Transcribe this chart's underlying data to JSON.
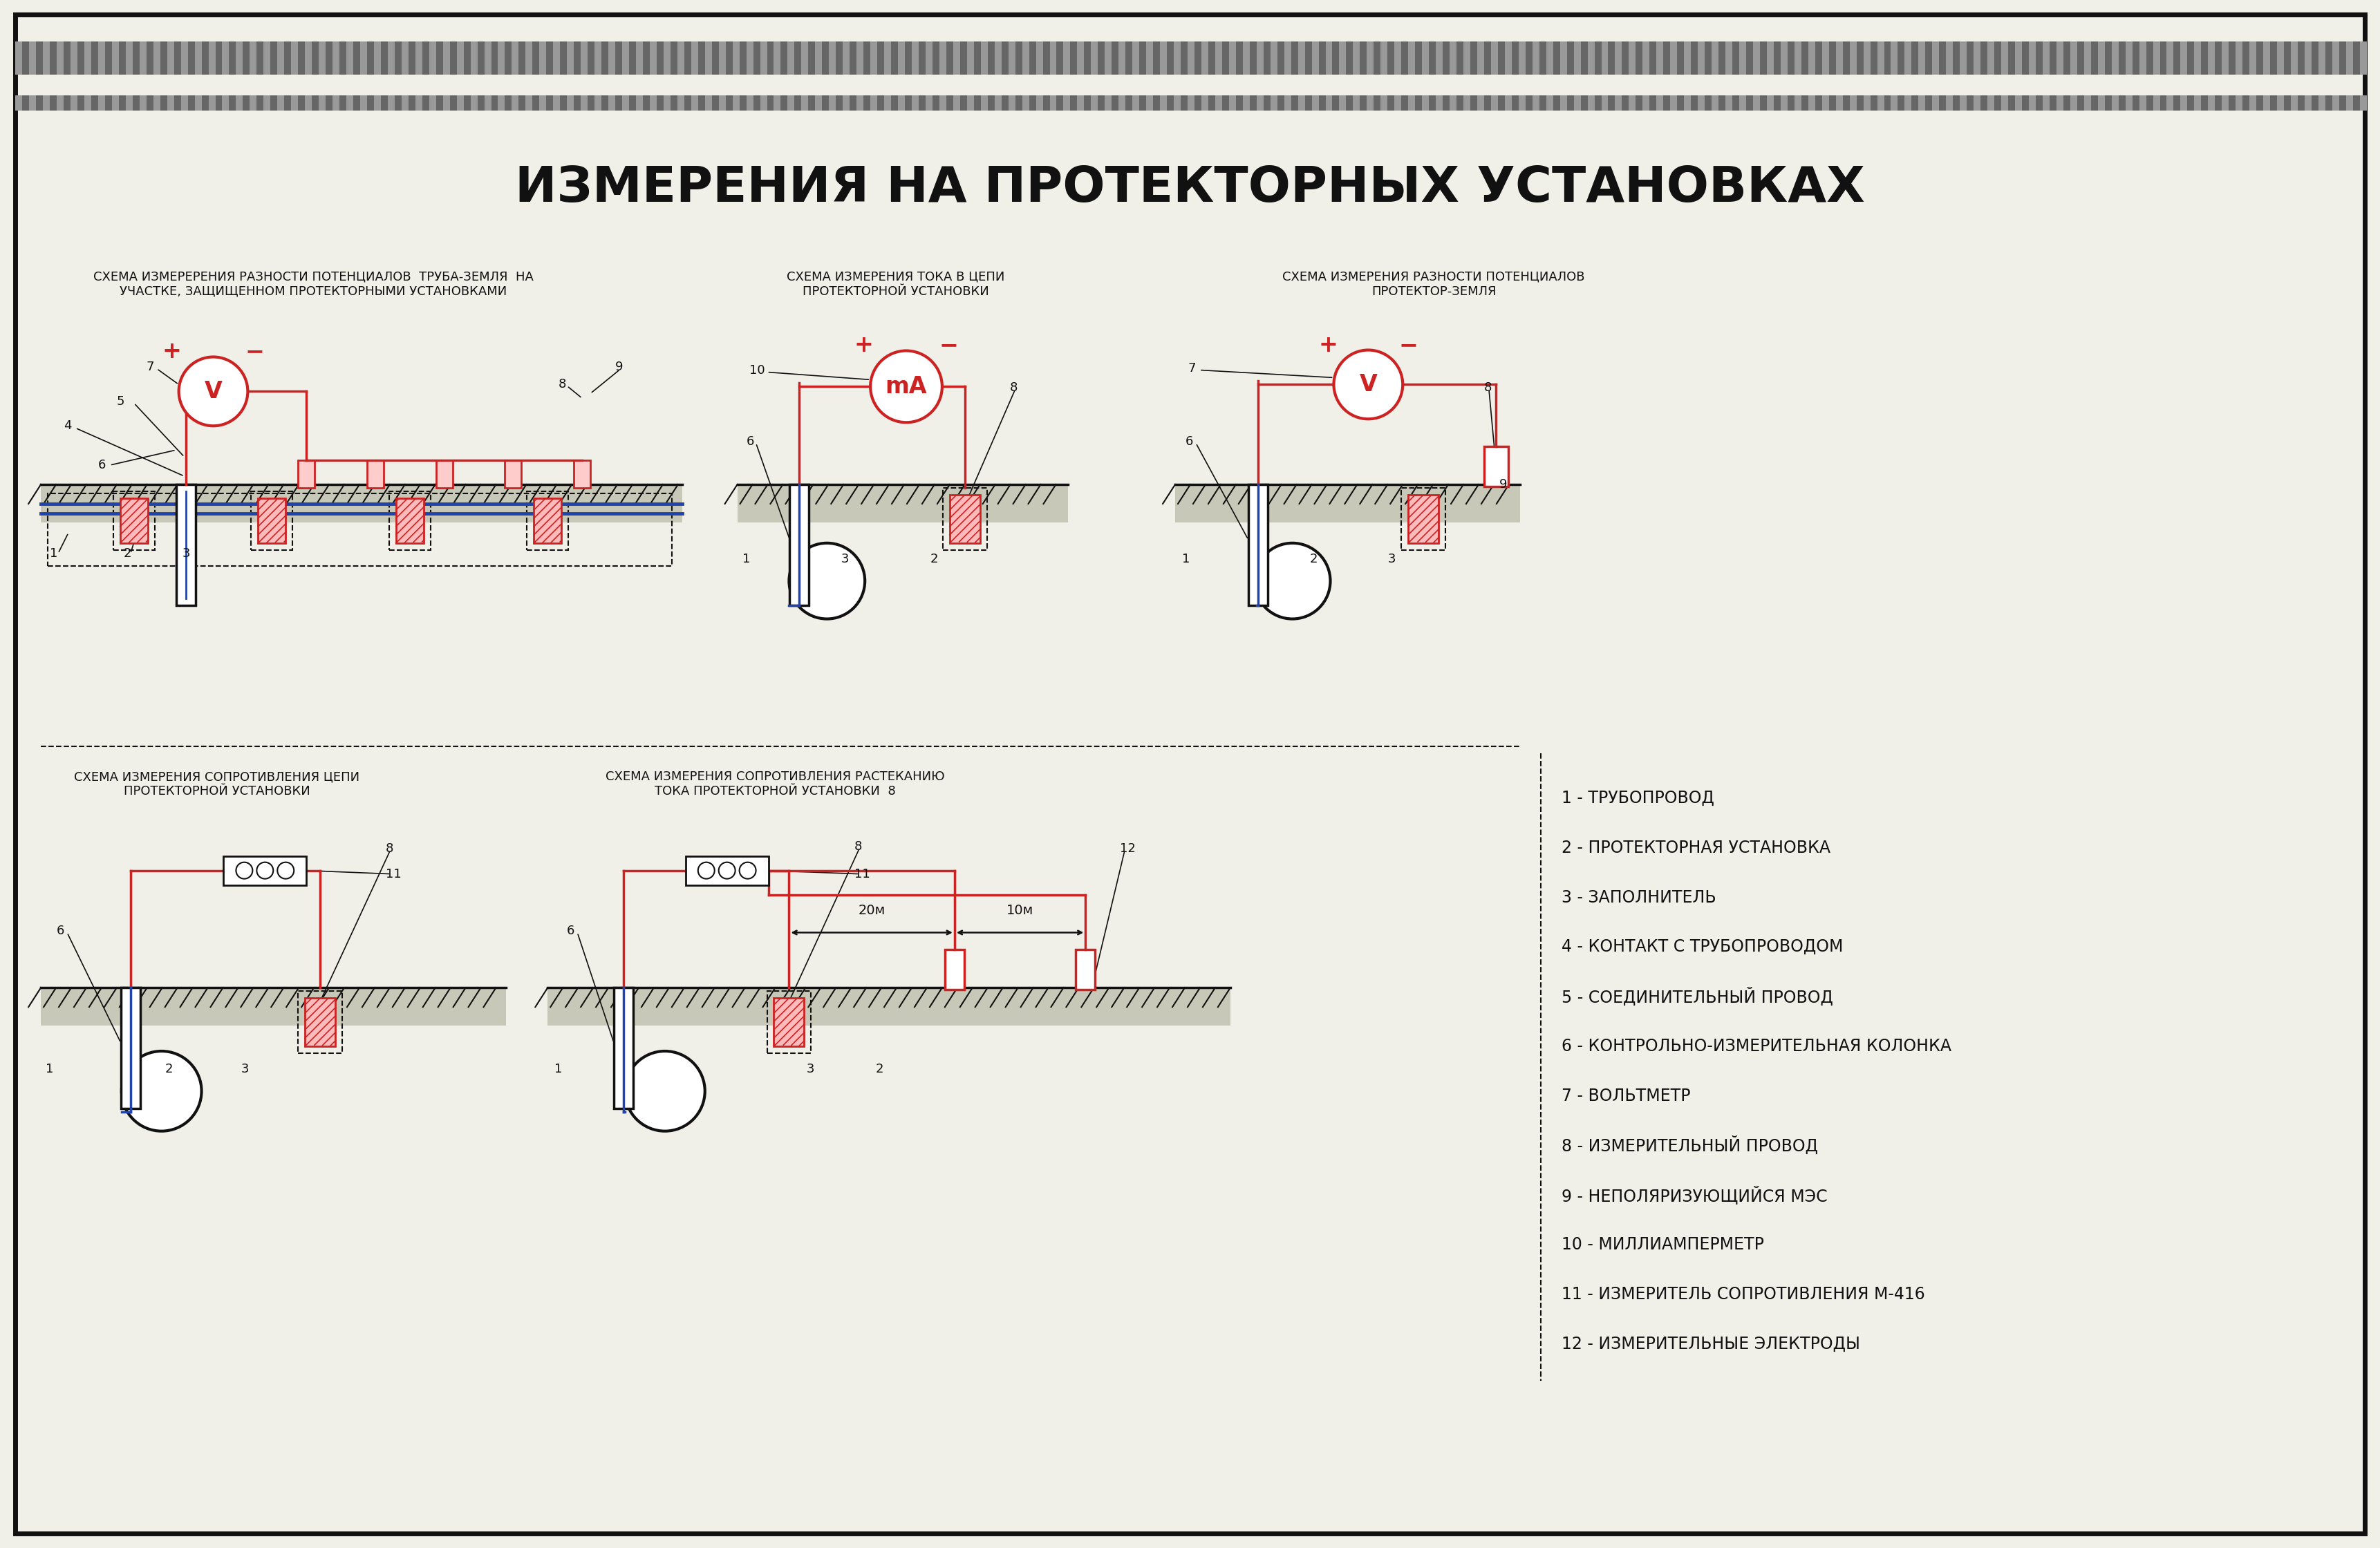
{
  "title": "ИЗМЕРЕНИЯ НА ПРОТЕКТОРНЫХ УСТАНОВКАХ",
  "bg_color": "#f0efe8",
  "border_color": "#111111",
  "text_color": "#111111",
  "red_color": "#cc2222",
  "blue_color": "#2244aa",
  "dark_color": "#111111",
  "legend": [
    "1 - ТРУБОПРОВОД",
    "2 - ПРОТЕКТОРНАЯ УСТАНОВКА",
    "3 - ЗАПОЛНИТЕЛЬ",
    "4 - КОНТАКТ С ТРУБОПРОВОДОМ",
    "5 - СОЕДИНИТЕЛЬНЫЙ ПРОВОД",
    "6 - КОНТРОЛЬНО-ИЗМЕРИТЕЛЬНАЯ КОЛОНКА",
    "7 - ВОЛЬТМЕТР",
    "8 - ИЗМЕРИТЕЛЬНЫЙ ПРОВОД",
    "9 - НЕПОЛЯРИЗУЮЩИЙСЯ МЭС",
    "10 - МИЛЛИАМПЕРМЕТР",
    "11 - ИЗМЕРИТЕЛЬ СОПРОТИВЛЕНИЯ М-416",
    "12 - ИЗМЕРИТЕЛЬНЫЕ ЭЛЕКТРОДЫ"
  ],
  "diagram1_title": "СХЕМА ИЗМЕРЕРЕНИЯ РАЗНОСТИ ПОТЕНЦИАЛОВ  ТРУБА-ЗЕМЛЯ  НА\nУЧАСТКЕ, ЗАЩИЩЕННОМ ПРОТЕКТОРНЫМИ УСТАНОВКАМИ",
  "diagram2_title": "СХЕМА ИЗМЕРЕНИЯ ТОКА В ЦЕПИ\nПРОТЕКТОРНОЙ УСТАНОВКИ",
  "diagram3_title": "СХЕМА ИЗМЕРЕНИЯ РАЗНОСТИ ПОТЕНЦИАЛОВ\nПРОТЕКТОР-ЗЕМЛЯ",
  "diagram4_title": "СХЕМА ИЗМЕРЕНИЯ СОПРОТИВЛЕНИЯ ЦЕПИ\nПРОТЕКТОРНОЙ УСТАНОВКИ",
  "diagram5_title": "СХЕМА ИЗМЕРЕНИЯ СОПРОТИВЛЕНИЯ РАСТЕКАНИЮ\nТОКА ПРОТЕКТОРНОЙ УСТАНОВКИ  8"
}
